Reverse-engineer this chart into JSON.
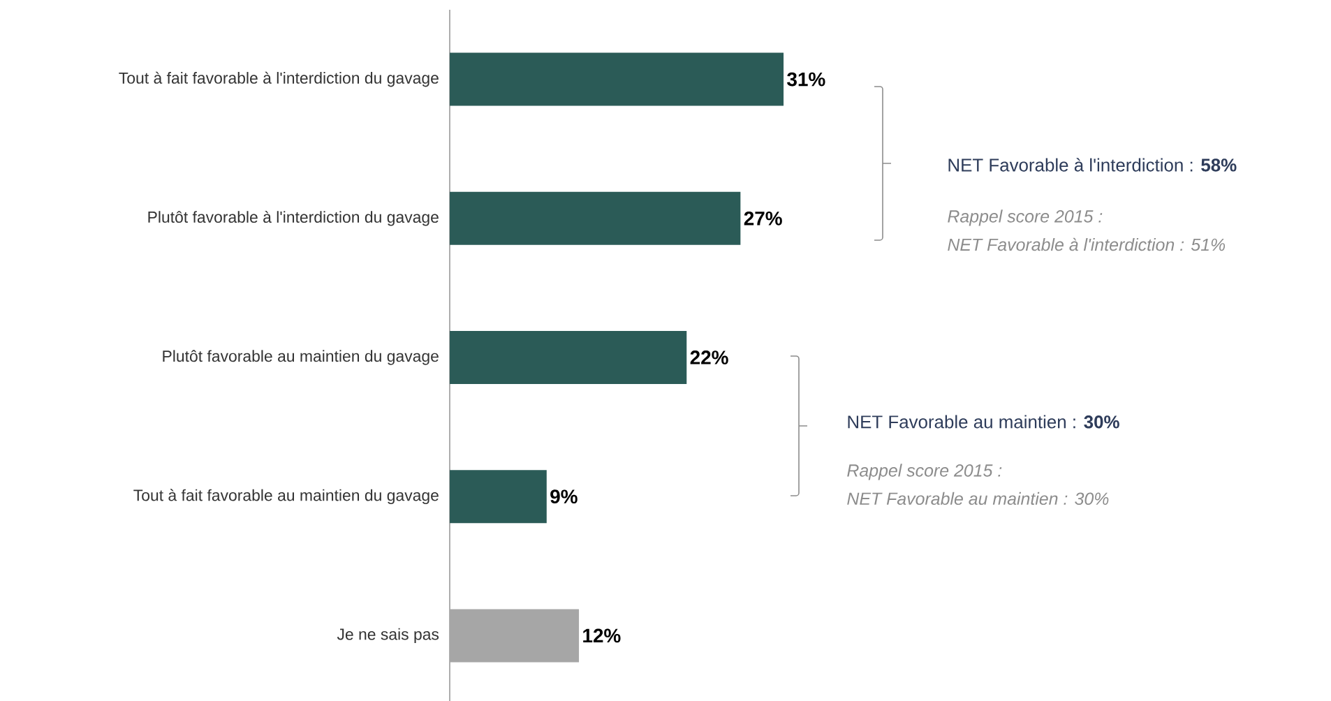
{
  "chart_data": {
    "type": "bar",
    "orientation": "horizontal",
    "categories": [
      "Tout à fait favorable à l'interdiction du gavage",
      "Plutôt favorable à l'interdiction du gavage",
      "Plutôt favorable au maintien du gavage",
      "Tout à fait favorable au maintien du gavage",
      "Je ne sais pas"
    ],
    "values": [
      31,
      27,
      22,
      9,
      12
    ],
    "colors": [
      "#2b5b57",
      "#2b5b57",
      "#2b5b57",
      "#2b5b57",
      "#a6a6a6"
    ],
    "value_labels": [
      "31%",
      "27%",
      "22%",
      "9%",
      "12%"
    ],
    "annotations": [
      "NET Favorable à l'interdiction : **58%**",
      "Rappel score 2015 :",
      "NET Favorable à l'interdiction :  51%",
      "NET Favorable au maintien : **30%**",
      "Rappel score 2015 :",
      "NET Favorable au maintien :  30%"
    ]
  }
}
